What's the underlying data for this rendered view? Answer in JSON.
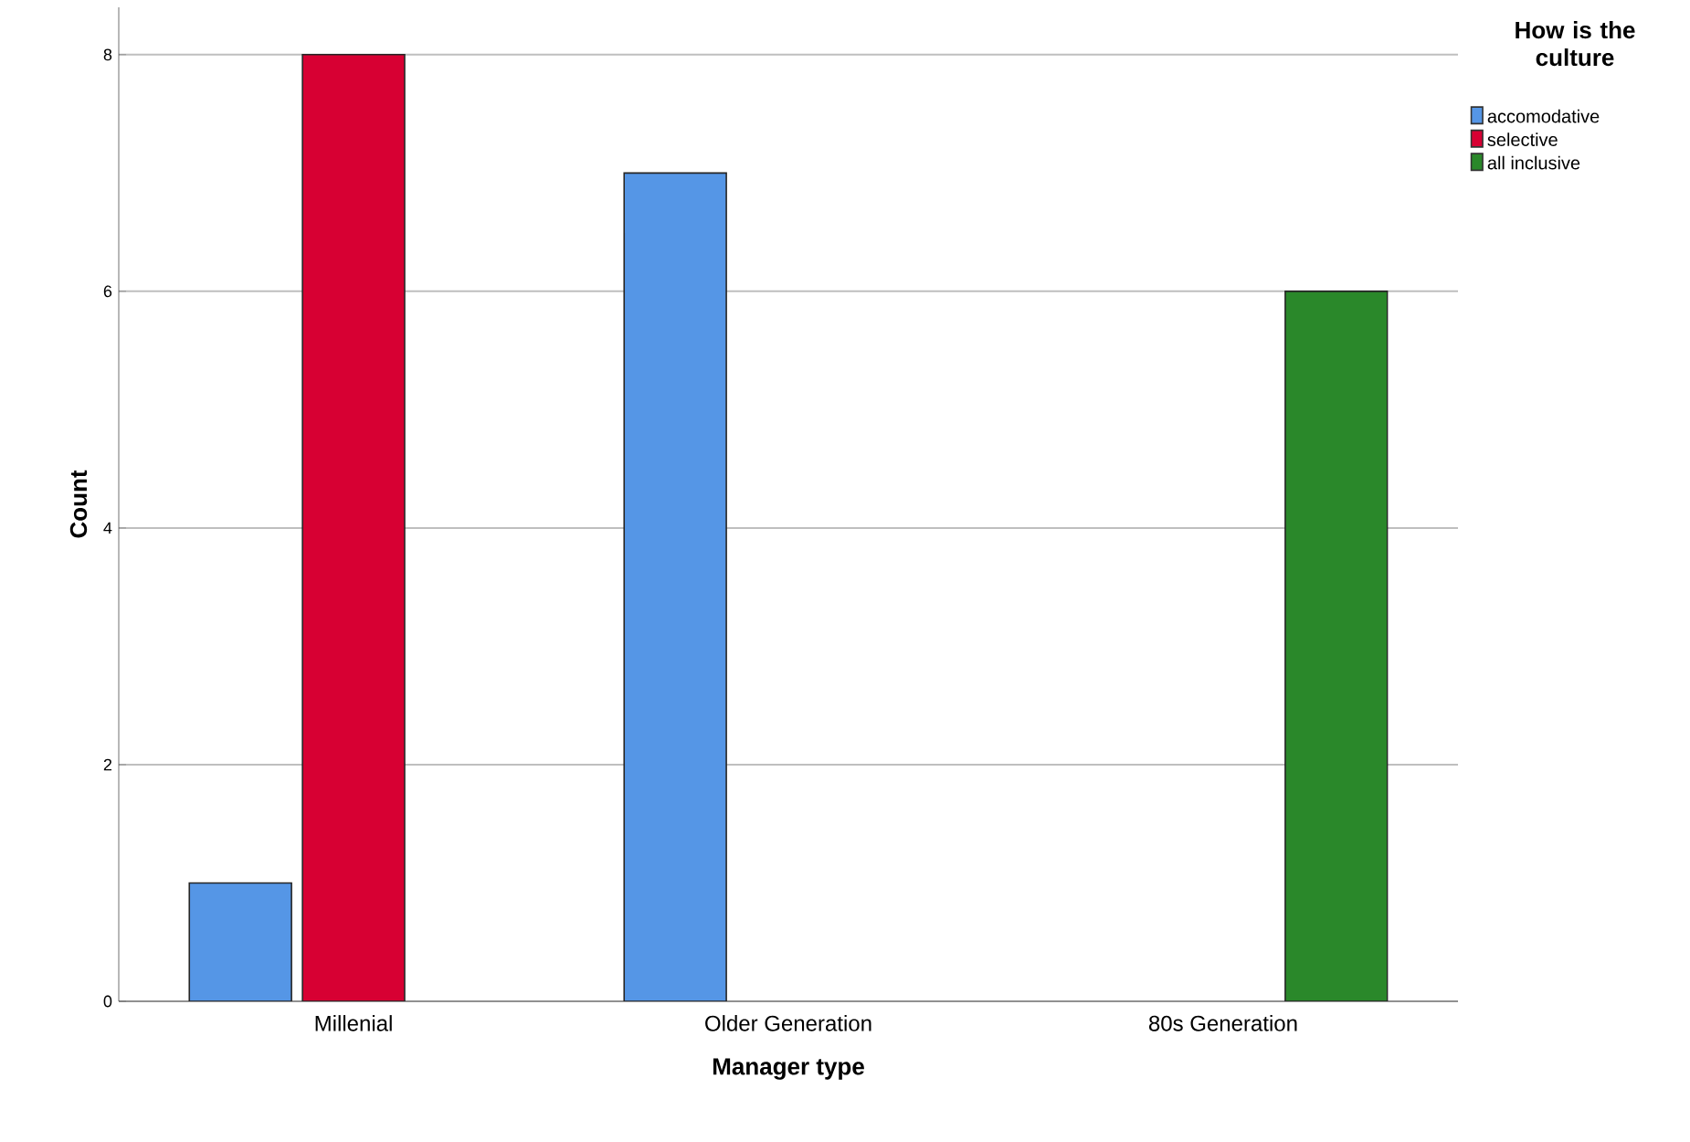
{
  "chart_data": {
    "type": "bar",
    "xlabel": "Manager type",
    "ylabel": "Count",
    "legend_title": "How is the culture",
    "categories": [
      "Millenial",
      "Older Generation",
      "80s Generation"
    ],
    "series": [
      {
        "name": "accomodative",
        "color": "#5596e6",
        "values": [
          1,
          7,
          0
        ]
      },
      {
        "name": "selective",
        "color": "#d70033",
        "values": [
          8,
          0,
          0
        ]
      },
      {
        "name": "all inclusive",
        "color": "#2a882a",
        "values": [
          0,
          0,
          6
        ]
      }
    ],
    "ylim": [
      0,
      8.4
    ],
    "yticks": [
      0,
      2,
      4,
      6,
      8
    ],
    "grid": "y",
    "legend": "top right"
  }
}
